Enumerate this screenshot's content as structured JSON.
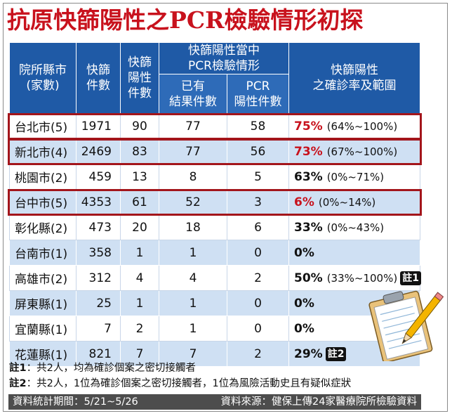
{
  "title": "抗原快篩陽性之PCR檢驗情形初探",
  "table": {
    "headers": {
      "county": "院所縣市\n(家數)",
      "screen_count": "快篩\n件數",
      "positive_count": "快篩\n陽性\n件數",
      "pcr_group": "快篩陽性當中\nPCR檢驗情形",
      "results_count": "已有\n結果件數",
      "pcr_positive": "PCR\n陽性件數",
      "confirm_rate": "快篩陽性\n之確診率及範圍"
    },
    "rows": [
      {
        "county": "台北市(5)",
        "screen": "1971",
        "positive": "90",
        "results": "77",
        "pcr": "58",
        "rate": "75%",
        "range": "(64%~100%)",
        "note": "",
        "highlight": true
      },
      {
        "county": "新北市(4)",
        "screen": "2469",
        "positive": "83",
        "results": "77",
        "pcr": "56",
        "rate": "73%",
        "range": "(67%~100%)",
        "note": "",
        "highlight": true
      },
      {
        "county": "桃園市(2)",
        "screen": "459",
        "positive": "13",
        "results": "8",
        "pcr": "5",
        "rate": "63%",
        "range": "(0%~71%)",
        "note": "",
        "highlight": false
      },
      {
        "county": "台中市(5)",
        "screen": "4353",
        "positive": "61",
        "results": "52",
        "pcr": "3",
        "rate": "6%",
        "range": "(0%~14%)",
        "note": "",
        "highlight": true
      },
      {
        "county": "彰化縣(2)",
        "screen": "473",
        "positive": "20",
        "results": "18",
        "pcr": "6",
        "rate": "33%",
        "range": "(0%~43%)",
        "note": "",
        "highlight": false
      },
      {
        "county": "台南市(1)",
        "screen": "358",
        "positive": "1",
        "results": "1",
        "pcr": "0",
        "rate": "0%",
        "range": "",
        "note": "",
        "highlight": false
      },
      {
        "county": "高雄市(2)",
        "screen": "312",
        "positive": "4",
        "results": "4",
        "pcr": "2",
        "rate": "50%",
        "range": "(33%~100%)",
        "note": "註1",
        "highlight": false
      },
      {
        "county": "屏東縣(1)",
        "screen": "25",
        "positive": "1",
        "results": "1",
        "pcr": "0",
        "rate": "0%",
        "range": "",
        "note": "",
        "highlight": false
      },
      {
        "county": "宜蘭縣(1)",
        "screen": "7",
        "positive": "2",
        "results": "1",
        "pcr": "0",
        "rate": "0%",
        "range": "",
        "note": "",
        "highlight": false
      },
      {
        "county": "花蓮縣(1)",
        "screen": "821",
        "positive": "7",
        "results": "7",
        "pcr": "2",
        "rate": "29%",
        "range": "",
        "note": "註2",
        "highlight": false
      }
    ]
  },
  "notes": {
    "note1_label": "註1",
    "note1_text": "：共2人，均為確診個案之密切接觸者",
    "note2_label": "註2",
    "note2_text": "：共2人，1位為確診個案之密切接觸者，1位為風險活動史且有疑似症狀"
  },
  "footer": {
    "period": "資料統計期間：5/21~5/26",
    "source": "資料來源：健保上傳24家醫療院所檢驗資料"
  },
  "colors": {
    "title_red": "#c8121d",
    "header_blue": "#1f5aa6",
    "row_alt": "#cfe0f3",
    "highlight_border": "#a3151b",
    "footer_bg": "#4d4d4d"
  },
  "icons": [
    "clipboard-pencil-icon"
  ]
}
